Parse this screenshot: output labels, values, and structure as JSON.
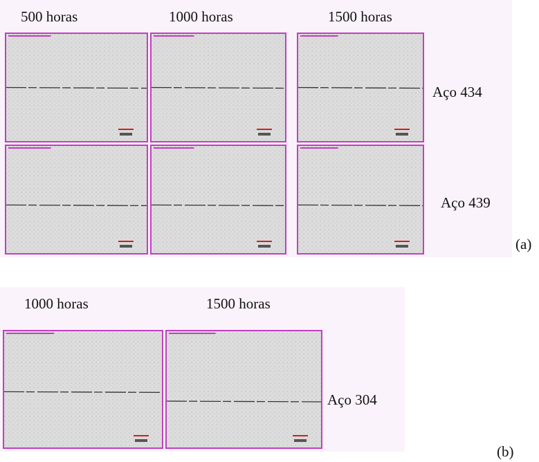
{
  "panel_a": {
    "columns": [
      "500 horas",
      "1000 horas",
      "1500 horas"
    ],
    "rows": [
      "Aço 434",
      "Aço 439"
    ],
    "label": "(a)"
  },
  "panel_b": {
    "columns": [
      "1000 horas",
      "1500 horas"
    ],
    "rows": [
      "Aço 304"
    ],
    "label": "(b)"
  }
}
